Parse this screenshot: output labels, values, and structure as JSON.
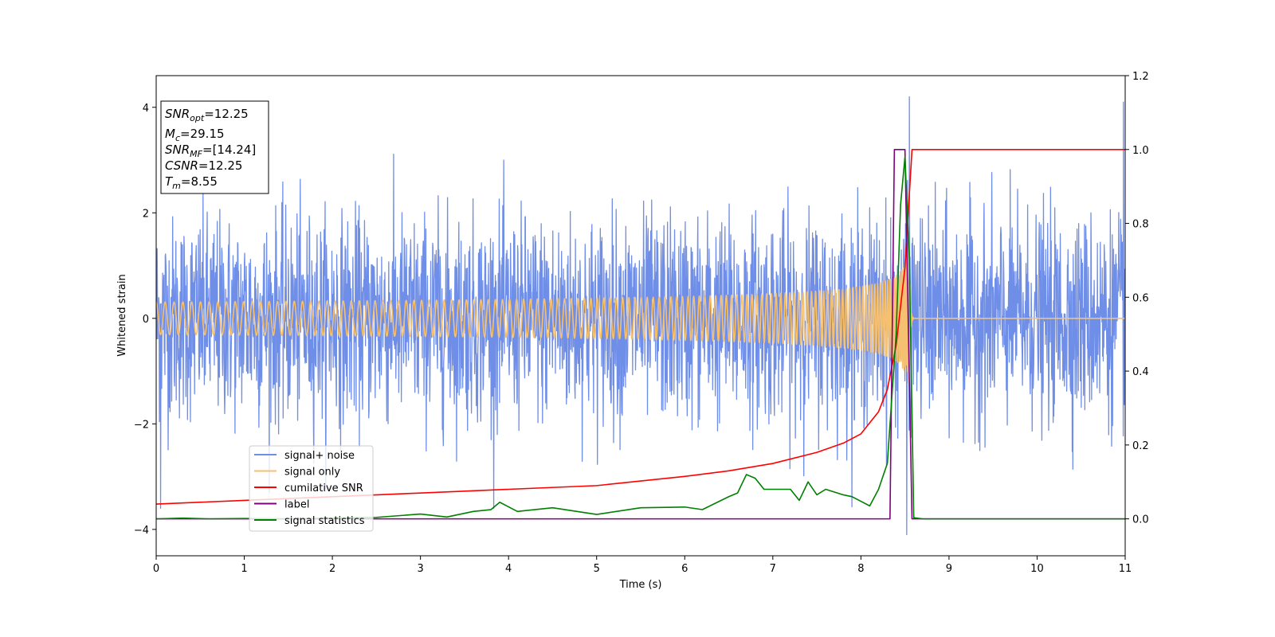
{
  "chart_data": {
    "type": "line",
    "xlabel": "Time (s)",
    "ylabel_left": "Whitened strain",
    "ylabel_right": "",
    "xlim": [
      0,
      11
    ],
    "ylim_left": [
      -4.5,
      4.6
    ],
    "ylim_right": [
      -0.1,
      1.2
    ],
    "x_ticks": [
      "0",
      "1",
      "2",
      "3",
      "4",
      "5",
      "6",
      "7",
      "8",
      "9",
      "10",
      "11"
    ],
    "y_left_ticks": [
      "4",
      "2",
      "0",
      "−2",
      "−4"
    ],
    "y_left_tick_values": [
      4,
      2,
      0,
      -2,
      -4
    ],
    "y_right_ticks": [
      "1.2",
      "1.0",
      "0.8",
      "0.6",
      "0.4",
      "0.2",
      "0.0"
    ],
    "y_right_tick_values": [
      1.2,
      1.0,
      0.8,
      0.6,
      0.4,
      0.2,
      0.0
    ],
    "grid": false,
    "legend_position": "lower-left",
    "stats_box": [
      {
        "base": "SNR",
        "sub": "opt",
        "value": "=12.25"
      },
      {
        "base": "M",
        "sub": "c",
        "value": "=29.15"
      },
      {
        "base": "SNR",
        "sub": "MF",
        "value": "=[14.24]"
      },
      {
        "base": "CSNR",
        "sub": "",
        "value": "=12.25"
      },
      {
        "base": "T",
        "sub": "m",
        "value": "=8.55"
      }
    ],
    "series": [
      {
        "name": "signal+ noise",
        "axis": "left",
        "color": "#6f8ee8",
        "kind": "noise",
        "std": 0.95,
        "x_range": [
          0,
          11
        ],
        "notable_peaks": [
          [
            8.55,
            4.2
          ],
          [
            8.52,
            -4.1
          ],
          [
            10.98,
            4.1
          ],
          [
            0.05,
            -3.6
          ]
        ]
      },
      {
        "name": "signal only",
        "axis": "left",
        "color": "#f5c070",
        "kind": "chirp",
        "merger_time": 8.55,
        "peak_amplitude": 1.4
      },
      {
        "name": "cumilative SNR",
        "axis": "right",
        "color": "#ff0000",
        "x": [
          0,
          1,
          2,
          3,
          4,
          5,
          6,
          6.5,
          7,
          7.5,
          7.8,
          8.0,
          8.2,
          8.3,
          8.4,
          8.5,
          8.58,
          11
        ],
        "y": [
          0.04,
          0.05,
          0.06,
          0.07,
          0.08,
          0.09,
          0.115,
          0.13,
          0.15,
          0.18,
          0.205,
          0.23,
          0.29,
          0.35,
          0.47,
          0.68,
          1.0,
          1.0
        ]
      },
      {
        "name": "label",
        "axis": "right",
        "color": "#800080",
        "x": [
          0,
          8.33,
          8.38,
          8.5,
          8.58,
          11
        ],
        "y": [
          0.0,
          0.0,
          1.0,
          1.0,
          0.0,
          0.0
        ]
      },
      {
        "name": "signal statistics",
        "axis": "right",
        "color": "#008000",
        "x": [
          0,
          0.3,
          0.6,
          1.0,
          1.5,
          2.0,
          2.5,
          3.0,
          3.3,
          3.6,
          3.8,
          3.9,
          4.1,
          4.5,
          5.0,
          5.5,
          6.0,
          6.2,
          6.5,
          6.6,
          6.7,
          6.8,
          6.9,
          7.0,
          7.2,
          7.3,
          7.4,
          7.5,
          7.6,
          7.8,
          7.9,
          8.1,
          8.2,
          8.3,
          8.4,
          8.45,
          8.5,
          8.55,
          8.6,
          8.7,
          9.0,
          11
        ],
        "y": [
          0.0,
          0.002,
          0.0,
          0.001,
          0.0,
          0.002,
          0.004,
          0.013,
          0.005,
          0.02,
          0.025,
          0.045,
          0.02,
          0.03,
          0.012,
          0.03,
          0.032,
          0.025,
          0.06,
          0.07,
          0.12,
          0.11,
          0.08,
          0.08,
          0.08,
          0.05,
          0.1,
          0.065,
          0.08,
          0.065,
          0.06,
          0.035,
          0.08,
          0.15,
          0.5,
          0.85,
          0.98,
          0.7,
          0.003,
          0.0,
          0.0,
          0.0
        ]
      }
    ]
  }
}
